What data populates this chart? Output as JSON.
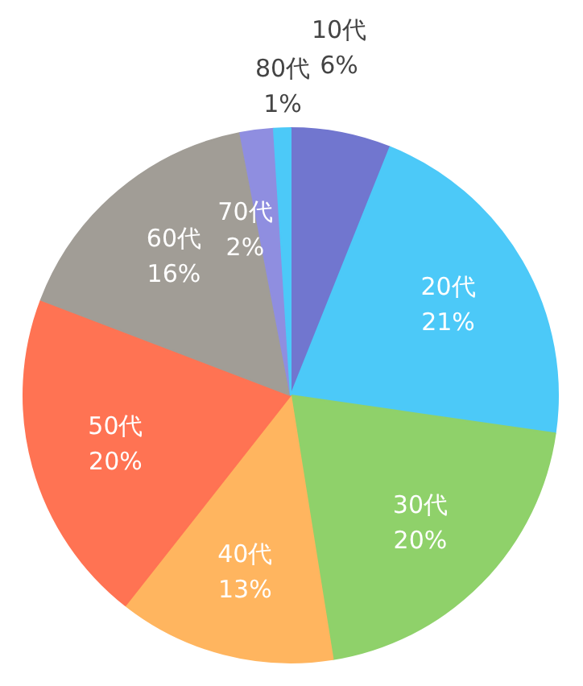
{
  "chart_data": {
    "type": "pie",
    "categories": [
      "10代",
      "20代",
      "30代",
      "40代",
      "50代",
      "60代",
      "70代",
      "80代"
    ],
    "values": [
      6,
      21,
      20,
      13,
      20,
      16,
      2,
      1
    ],
    "value_labels": [
      "6%",
      "21%",
      "20%",
      "13%",
      "20%",
      "16%",
      "2%",
      "1%"
    ],
    "colors": [
      "#7176cf",
      "#4cc9f8",
      "#8fd16a",
      "#ffb55f",
      "#ff7353",
      "#a19d96",
      "#8f8ee0",
      "#4cc9f8"
    ]
  }
}
